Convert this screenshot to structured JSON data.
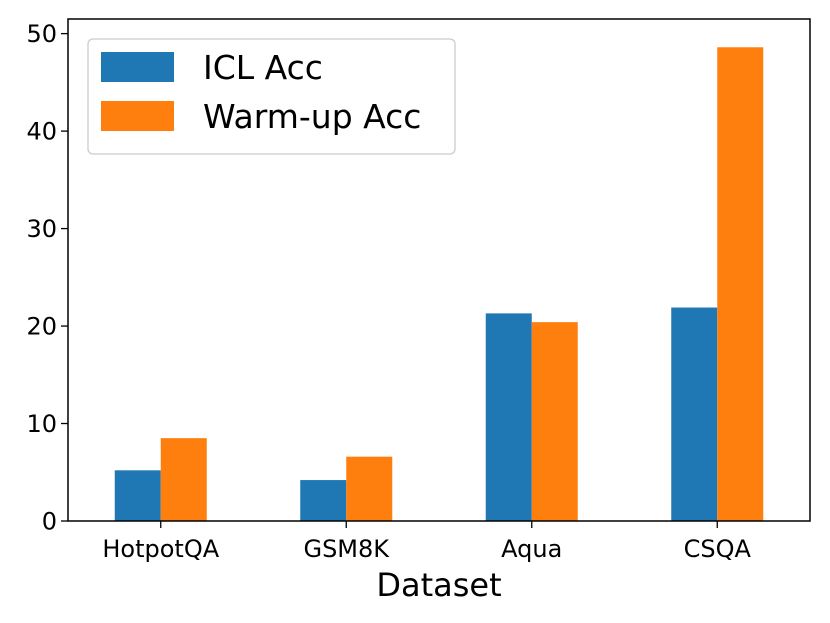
{
  "chart_data": {
    "type": "bar",
    "title": "",
    "xlabel": "Dataset",
    "ylabel": "",
    "categories": [
      "HotpotQA",
      "GSM8K",
      "Aqua",
      "CSQA"
    ],
    "series": [
      {
        "name": "ICL Acc",
        "color": "#1f77b4",
        "values": [
          5.2,
          4.2,
          21.3,
          21.9
        ]
      },
      {
        "name": "Warm-up Acc",
        "color": "#ff7f0e",
        "values": [
          8.5,
          6.6,
          20.4,
          48.6
        ]
      }
    ],
    "ylim": [
      0,
      51.5
    ],
    "yticks": [
      0,
      10,
      20,
      30,
      40,
      50
    ],
    "grid": false,
    "legend": "top-left"
  }
}
